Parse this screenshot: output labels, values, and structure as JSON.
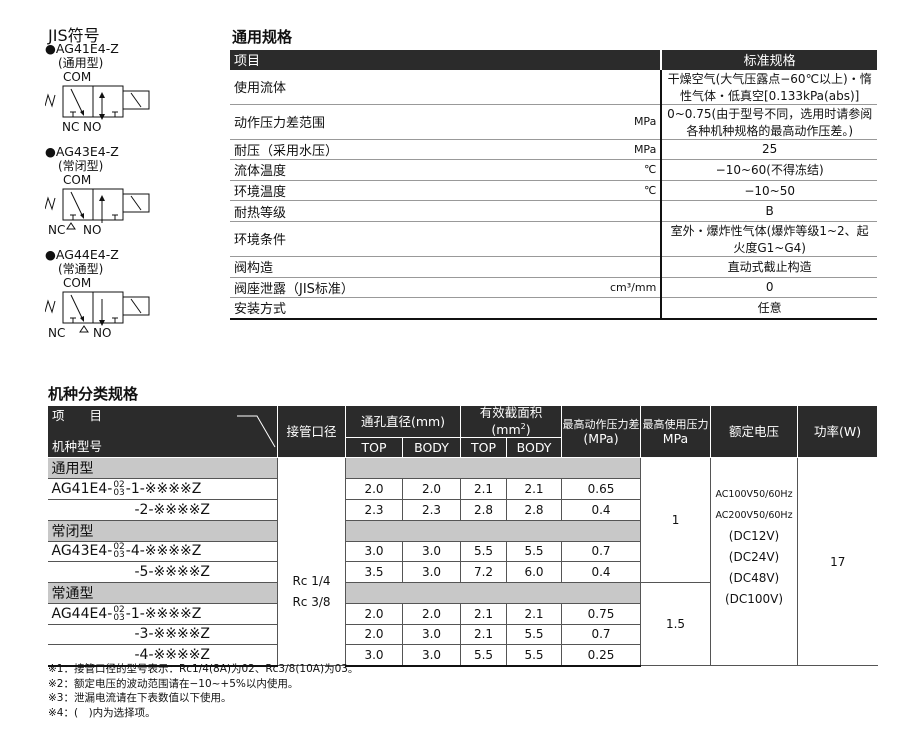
{
  "jis": {
    "title": "JIS符号",
    "symbols": [
      {
        "bullet": "●",
        "model": "AG41E4-Z",
        "type": "(通用型)",
        "com": "COM",
        "nc": "NC",
        "no": "NO",
        "kind": "universal"
      },
      {
        "bullet": "●",
        "model": "AG43E4-Z",
        "type": "(常闭型)",
        "com": "COM",
        "nc": "NC",
        "no": "NO",
        "kind": "nc"
      },
      {
        "bullet": "●",
        "model": "AG44E4-Z",
        "type": "(常通型)",
        "com": "COM",
        "nc": "NC",
        "no": "NO",
        "kind": "no"
      }
    ]
  },
  "spec": {
    "title": "通用规格",
    "header": [
      "项目",
      "标准规格"
    ],
    "rows": [
      {
        "label": "使用流体",
        "unit": "",
        "value": "干燥空气(大气压露点−60℃以上)・惰性气体・低真空[0.133kPa(abs)]"
      },
      {
        "label": "动作压力差范围",
        "unit": "MPa",
        "value": "0~0.75(由于型号不同，选用时请参阅各种机种规格的最高动作压差。)"
      },
      {
        "label": "耐压（采用水压）",
        "unit": "MPa",
        "value": "25"
      },
      {
        "label": "流体温度",
        "unit": "℃",
        "value": "−10~60(不得冻结)"
      },
      {
        "label": "环境温度",
        "unit": "℃",
        "value": "−10~50"
      },
      {
        "label": "耐热等级",
        "unit": "",
        "value": "B"
      },
      {
        "label": "环境条件",
        "unit": "",
        "value": "室外・爆炸性气体(爆炸等级1~2、起火度G1~G4)"
      },
      {
        "label": "阀构造",
        "unit": "",
        "value": "直动式截止构造"
      },
      {
        "label": "阀座泄露（JIS标准）",
        "unit": "cm³/mm",
        "value": "0"
      },
      {
        "label": "安装方式",
        "unit": "",
        "value": "任意"
      }
    ]
  },
  "cls": {
    "title": "机种分类规格",
    "header": {
      "item": "项　　目",
      "model": "机种型号",
      "port": "接管口径",
      "bore": "通孔直径(mm)",
      "area": "有效截面积(mm",
      "area_sup": "2",
      "area_end": ")",
      "top": "TOP",
      "body": "BODY",
      "maxdiff": "最高动作压力差",
      "maxdiff_unit": "(MPa)",
      "maxuse": "最高使用压力",
      "maxuse_unit": "MPa",
      "voltage": "额定电压",
      "power": "功率(W)"
    },
    "port": [
      "Rc 1/4",
      "Rc 3/8"
    ],
    "maxuse": [
      "1",
      "1.5"
    ],
    "voltage": [
      "AC100V50/60Hz",
      "AC200V50/60Hz",
      "(DC12V)",
      "(DC24V)",
      "(DC48V)",
      "(DC100V)"
    ],
    "power": "17",
    "rows": [
      {
        "group": "通用型"
      },
      {
        "prefix": "AG41E4-",
        "frac": [
          "02",
          "03"
        ],
        "suffix": "-1-※※※※Z",
        "v": [
          "2.0",
          "2.0",
          "2.1",
          "2.1",
          "0.65"
        ]
      },
      {
        "suffix": "-2-※※※※Z",
        "v": [
          "2.3",
          "2.3",
          "2.8",
          "2.8",
          "0.4"
        ]
      },
      {
        "group": "常闭型"
      },
      {
        "prefix": "AG43E4-",
        "frac": [
          "02",
          "03"
        ],
        "suffix": "-4-※※※※Z",
        "v": [
          "3.0",
          "3.0",
          "5.5",
          "5.5",
          "0.7"
        ]
      },
      {
        "suffix": "-5-※※※※Z",
        "v": [
          "3.5",
          "3.0",
          "7.2",
          "6.0",
          "0.4"
        ]
      },
      {
        "group": "常通型"
      },
      {
        "prefix": "AG44E4-",
        "frac": [
          "02",
          "03"
        ],
        "suffix": "-1-※※※※Z",
        "v": [
          "2.0",
          "2.0",
          "2.1",
          "2.1",
          "0.75"
        ]
      },
      {
        "suffix": "-3-※※※※Z",
        "v": [
          "2.0",
          "3.0",
          "2.1",
          "5.5",
          "0.7"
        ]
      },
      {
        "suffix": "-4-※※※※Z",
        "v": [
          "3.0",
          "3.0",
          "5.5",
          "5.5",
          "0.25"
        ]
      }
    ]
  },
  "notes": [
    "※1：接管口径的型号表示：Rc1/4(8A)为02、Rc3/8(10A)为03。",
    "※2：额定电压的波动范围请在−10~+5%以内使用。",
    "※3：泄漏电流请在下表数值以下使用。",
    "※4：(　)内为选择项。"
  ]
}
